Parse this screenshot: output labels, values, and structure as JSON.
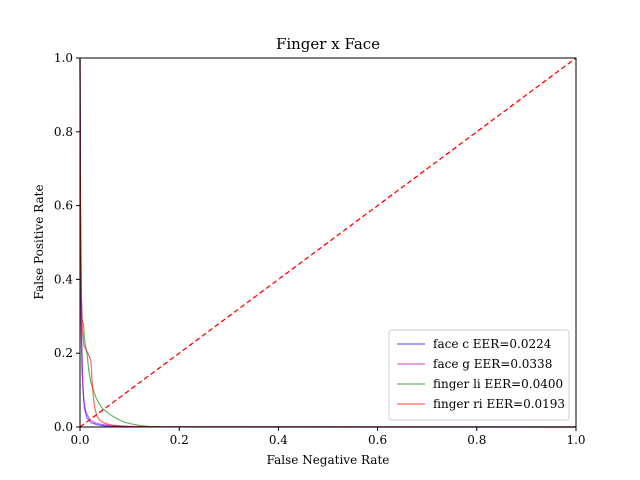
{
  "chart_data": {
    "type": "line",
    "title": "Finger x Face",
    "xlabel": "False Negative Rate",
    "ylabel": "False Positive Rate",
    "xlim": [
      0,
      1
    ],
    "ylim": [
      0,
      1
    ],
    "xticks": [
      "0.0",
      "0.2",
      "0.4",
      "0.6",
      "0.8",
      "1.0"
    ],
    "yticks": [
      "0.0",
      "0.2",
      "0.4",
      "0.6",
      "0.8",
      "1.0"
    ],
    "grid": false,
    "legend_position": "lower-right",
    "reference_line": {
      "style": "dashed",
      "color": "#ff0000",
      "points": [
        [
          0,
          0
        ],
        [
          1,
          1
        ]
      ]
    },
    "series": [
      {
        "name": "face c EER=0.0224",
        "color": "#0000ff",
        "points": [
          [
            0,
            1
          ],
          [
            0.001,
            0.6
          ],
          [
            0.002,
            0.35
          ],
          [
            0.004,
            0.2
          ],
          [
            0.006,
            0.1
          ],
          [
            0.009,
            0.05
          ],
          [
            0.014,
            0.025
          ],
          [
            0.022,
            0.012
          ],
          [
            0.035,
            0.006
          ],
          [
            0.05,
            0.003
          ],
          [
            0.07,
            0.0015
          ],
          [
            0.1,
            0.0005
          ],
          [
            0.13,
            0.0001
          ],
          [
            1,
            0
          ]
        ]
      },
      {
        "name": "face g EER=0.0338",
        "color": "#bf00bf",
        "points": [
          [
            0,
            1
          ],
          [
            0.0005,
            0.8
          ],
          [
            0.001,
            0.5
          ],
          [
            0.002,
            0.3
          ],
          [
            0.004,
            0.15
          ],
          [
            0.008,
            0.07
          ],
          [
            0.012,
            0.04
          ],
          [
            0.02,
            0.02
          ],
          [
            0.03,
            0.012
          ],
          [
            0.04,
            0.008
          ],
          [
            0.06,
            0.004
          ],
          [
            0.09,
            0.002
          ],
          [
            0.13,
            0.0008
          ],
          [
            0.16,
            0.0002
          ],
          [
            1,
            0
          ]
        ]
      },
      {
        "name": "finger li EER=0.0400",
        "color": "#008000",
        "points": [
          [
            0,
            1
          ],
          [
            0.001,
            0.5
          ],
          [
            0.002,
            0.38
          ],
          [
            0.004,
            0.29
          ],
          [
            0.007,
            0.28
          ],
          [
            0.009,
            0.24
          ],
          [
            0.011,
            0.22
          ],
          [
            0.014,
            0.2
          ],
          [
            0.018,
            0.15
          ],
          [
            0.022,
            0.12
          ],
          [
            0.027,
            0.1
          ],
          [
            0.032,
            0.08
          ],
          [
            0.038,
            0.065
          ],
          [
            0.045,
            0.05
          ],
          [
            0.055,
            0.04
          ],
          [
            0.065,
            0.03
          ],
          [
            0.078,
            0.02
          ],
          [
            0.09,
            0.013
          ],
          [
            0.105,
            0.008
          ],
          [
            0.12,
            0.004
          ],
          [
            0.14,
            0.0015
          ],
          [
            0.16,
            0.0005
          ],
          [
            1,
            0
          ]
        ]
      },
      {
        "name": "finger ri EER=0.0193",
        "color": "#ff0000",
        "points": [
          [
            0,
            1
          ],
          [
            0.001,
            0.6
          ],
          [
            0.003,
            0.35
          ],
          [
            0.005,
            0.26
          ],
          [
            0.008,
            0.22
          ],
          [
            0.012,
            0.21
          ],
          [
            0.016,
            0.2
          ],
          [
            0.019,
            0.19
          ],
          [
            0.022,
            0.18
          ],
          [
            0.024,
            0.13
          ],
          [
            0.027,
            0.08
          ],
          [
            0.03,
            0.05
          ],
          [
            0.034,
            0.03
          ],
          [
            0.04,
            0.018
          ],
          [
            0.05,
            0.01
          ],
          [
            0.065,
            0.005
          ],
          [
            0.085,
            0.002
          ],
          [
            0.11,
            0.0008
          ],
          [
            1,
            0
          ]
        ]
      }
    ]
  }
}
